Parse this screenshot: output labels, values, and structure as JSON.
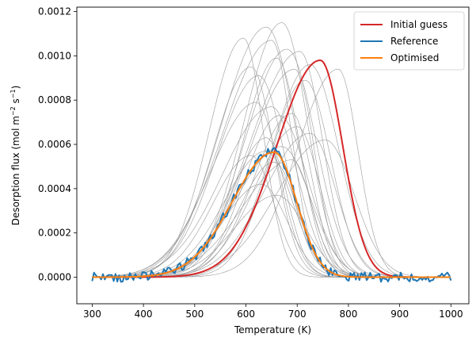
{
  "chart_data": {
    "type": "line",
    "title": "",
    "xlabel": "Temperature (K)",
    "ylabel_parts": [
      "Desorption flux (mol m",
      "−2",
      " s",
      "−1",
      ")"
    ],
    "xlim": [
      270,
      1035
    ],
    "ylim": [
      -0.00012,
      0.00122
    ],
    "xticks": [
      300,
      400,
      500,
      600,
      700,
      800,
      900,
      1000
    ],
    "xtick_labels": [
      "300",
      "400",
      "500",
      "600",
      "700",
      "800",
      "900",
      "1000"
    ],
    "yticks": [
      0,
      0.0002,
      0.0004,
      0.0006,
      0.0008,
      0.001,
      0.0012
    ],
    "ytick_labels": [
      "0.0000",
      "0.0002",
      "0.0004",
      "0.0006",
      "0.0008",
      "0.0010",
      "0.0012"
    ],
    "grid": false,
    "legend_position": "top-right",
    "x_range": [
      300,
      1000
    ],
    "series": [
      {
        "name": "Initial guess",
        "color": "#d62728",
        "peak_T": 745,
        "peak_flux": 0.00098,
        "width_low": 120,
        "width_high": 62
      },
      {
        "name": "Reference",
        "color": "#1f77b4",
        "peak_T": 655,
        "peak_flux": 0.000565,
        "width_low": 115,
        "width_high": 62,
        "noise": 2.2e-05
      },
      {
        "name": "Optimised",
        "color": "#ff7f0e",
        "peak_T": 655,
        "peak_flux": 0.000565,
        "width_low": 115,
        "width_high": 62
      }
    ],
    "ensemble": {
      "color": "#999999",
      "curves": [
        {
          "peak_T": 595,
          "peak_flux": 0.00108
        },
        {
          "peak_T": 610,
          "peak_flux": 0.00095
        },
        {
          "peak_T": 625,
          "peak_flux": 0.00091
        },
        {
          "peak_T": 640,
          "peak_flux": 0.00113
        },
        {
          "peak_T": 650,
          "peak_flux": 0.00107
        },
        {
          "peak_T": 660,
          "peak_flux": 0.00099
        },
        {
          "peak_T": 670,
          "peak_flux": 0.00115
        },
        {
          "peak_T": 680,
          "peak_flux": 0.00103
        },
        {
          "peak_T": 695,
          "peak_flux": 0.00094
        },
        {
          "peak_T": 705,
          "peak_flux": 0.00102
        },
        {
          "peak_T": 715,
          "peak_flux": 0.00089
        },
        {
          "peak_T": 725,
          "peak_flux": 0.00096
        },
        {
          "peak_T": 780,
          "peak_flux": 0.00094
        },
        {
          "peak_T": 620,
          "peak_flux": 0.00079
        },
        {
          "peak_T": 650,
          "peak_flux": 0.00077
        },
        {
          "peak_T": 665,
          "peak_flux": 0.00073
        },
        {
          "peak_T": 690,
          "peak_flux": 0.00074
        },
        {
          "peak_T": 700,
          "peak_flux": 0.00068
        },
        {
          "peak_T": 725,
          "peak_flux": 0.00065
        },
        {
          "peak_T": 755,
          "peak_flux": 0.00062
        },
        {
          "peak_T": 640,
          "peak_flux": 0.00063
        },
        {
          "peak_T": 610,
          "peak_flux": 0.00055
        },
        {
          "peak_T": 640,
          "peak_flux": 0.00057
        },
        {
          "peak_T": 670,
          "peak_flux": 0.00059
        },
        {
          "peak_T": 690,
          "peak_flux": 0.00053
        },
        {
          "peak_T": 655,
          "peak_flux": 0.00052
        },
        {
          "peak_T": 630,
          "peak_flux": 0.00042
        },
        {
          "peak_T": 660,
          "peak_flux": 0.00037
        }
      ]
    }
  }
}
